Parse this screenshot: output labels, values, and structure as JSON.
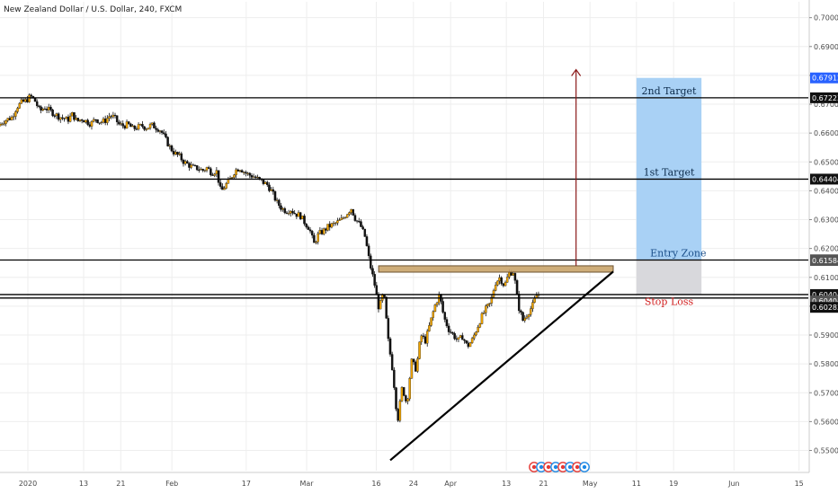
{
  "title": "New Zealand Dollar / U.S. Dollar, 240, FXCM",
  "chart_data": {
    "type": "candlestick",
    "symbol": "NZD/USD",
    "interval": "240",
    "source": "FXCM",
    "ylim": [
      0.543,
      0.7055
    ],
    "y_ticks": [
      "0.70000",
      "0.69000",
      "0.68000",
      "0.67000",
      "0.66000",
      "0.65000",
      "0.64000",
      "0.63000",
      "0.62000",
      "0.61000",
      "0.60000",
      "0.59000",
      "0.58000",
      "0.57000",
      "0.56000",
      "0.55000"
    ],
    "x_ticks": [
      {
        "label": "2020",
        "day": 0
      },
      {
        "label": "13",
        "day": 12
      },
      {
        "label": "21",
        "day": 20
      },
      {
        "label": "Feb",
        "day": 31
      },
      {
        "label": "17",
        "day": 47
      },
      {
        "label": "Mar",
        "day": 60
      },
      {
        "label": "16",
        "day": 75
      },
      {
        "label": "24",
        "day": 83
      },
      {
        "label": "Apr",
        "day": 91
      },
      {
        "label": "13",
        "day": 103
      },
      {
        "label": "21",
        "day": 111
      },
      {
        "label": "May",
        "day": 121
      },
      {
        "label": "11",
        "day": 131
      },
      {
        "label": "19",
        "day": 139
      },
      {
        "label": "Jun",
        "day": 152
      },
      {
        "label": "15",
        "day": 166
      }
    ],
    "xlim_days": [
      -6,
      168
    ],
    "price_path": [
      [
        -6,
        0.6625
      ],
      [
        -5,
        0.664
      ],
      [
        -3,
        0.6655
      ],
      [
        -2,
        0.669
      ],
      [
        -1,
        0.6705
      ],
      [
        0,
        0.6712
      ],
      [
        1,
        0.6728
      ],
      [
        2,
        0.671
      ],
      [
        3,
        0.6675
      ],
      [
        4,
        0.669
      ],
      [
        6,
        0.6668
      ],
      [
        7,
        0.6658
      ],
      [
        9,
        0.6645
      ],
      [
        10,
        0.6665
      ],
      [
        11,
        0.664
      ],
      [
        12,
        0.665
      ],
      [
        14,
        0.6632
      ],
      [
        15,
        0.665
      ],
      [
        16,
        0.6638
      ],
      [
        17,
        0.6642
      ],
      [
        18,
        0.666
      ],
      [
        19,
        0.6655
      ],
      [
        20,
        0.663
      ],
      [
        21,
        0.6625
      ],
      [
        22,
        0.663
      ],
      [
        23,
        0.6615
      ],
      [
        24,
        0.662
      ],
      [
        25,
        0.6625
      ],
      [
        26,
        0.6618
      ],
      [
        27,
        0.6628
      ],
      [
        28,
        0.662
      ],
      [
        29,
        0.661
      ],
      [
        30,
        0.658
      ],
      [
        31,
        0.655
      ],
      [
        32,
        0.653
      ],
      [
        33,
        0.652
      ],
      [
        34,
        0.65
      ],
      [
        35,
        0.649
      ],
      [
        36,
        0.648
      ],
      [
        37,
        0.6478
      ],
      [
        38,
        0.647
      ],
      [
        39,
        0.648
      ],
      [
        40,
        0.6462
      ],
      [
        41,
        0.647
      ],
      [
        42,
        0.6395
      ],
      [
        43,
        0.642
      ],
      [
        44,
        0.644
      ],
      [
        45,
        0.647
      ],
      [
        46,
        0.648
      ],
      [
        47,
        0.6465
      ],
      [
        48,
        0.6455
      ],
      [
        49,
        0.645
      ],
      [
        50,
        0.644
      ],
      [
        51,
        0.643
      ],
      [
        52,
        0.642
      ],
      [
        53,
        0.6395
      ],
      [
        54,
        0.636
      ],
      [
        55,
        0.634
      ],
      [
        56,
        0.633
      ],
      [
        57,
        0.6335
      ],
      [
        58,
        0.632
      ],
      [
        59,
        0.6315
      ],
      [
        60,
        0.629
      ],
      [
        61,
        0.627
      ],
      [
        62,
        0.6215
      ],
      [
        63,
        0.625
      ],
      [
        64,
        0.626
      ],
      [
        65,
        0.6275
      ],
      [
        66,
        0.6282
      ],
      [
        67,
        0.629
      ],
      [
        68,
        0.63
      ],
      [
        69,
        0.632
      ],
      [
        70,
        0.634
      ],
      [
        71,
        0.63
      ],
      [
        72,
        0.628
      ],
      [
        73,
        0.624
      ],
      [
        74,
        0.615
      ],
      [
        75,
        0.608
      ],
      [
        76,
        0.599
      ],
      [
        77,
        0.605
      ],
      [
        78,
        0.588
      ],
      [
        79,
        0.577
      ],
      [
        80,
        0.56
      ],
      [
        81,
        0.572
      ],
      [
        82,
        0.566
      ],
      [
        83,
        0.581
      ],
      [
        84,
        0.578
      ],
      [
        85,
        0.59
      ],
      [
        86,
        0.588
      ],
      [
        87,
        0.594
      ],
      [
        88,
        0.6
      ],
      [
        89,
        0.604
      ],
      [
        90,
        0.596
      ],
      [
        91,
        0.592
      ],
      [
        92,
        0.59
      ],
      [
        93,
        0.588
      ],
      [
        94,
        0.5895
      ],
      [
        95,
        0.586
      ],
      [
        96,
        0.588
      ],
      [
        97,
        0.592
      ],
      [
        98,
        0.596
      ],
      [
        99,
        0.599
      ],
      [
        100,
        0.601
      ],
      [
        101,
        0.608
      ],
      [
        102,
        0.61
      ],
      [
        103,
        0.607
      ],
      [
        104,
        0.6115
      ],
      [
        105,
        0.612
      ],
      [
        106,
        0.6
      ],
      [
        107,
        0.595
      ],
      [
        108,
        0.5975
      ],
      [
        109,
        0.6
      ],
      [
        110,
        0.604
      ]
    ],
    "levels": [
      {
        "name": "line-2nd-target",
        "price": 0.67223
      },
      {
        "name": "line-1st-target",
        "price": 0.64404
      },
      {
        "name": "line-entry",
        "price": 0.61601
      },
      {
        "name": "line-stop-upper",
        "price": 0.60404
      },
      {
        "name": "line-stop-lower",
        "price": 0.60283
      }
    ],
    "price_badges": [
      {
        "label": "0.67912",
        "price": 0.67912,
        "color": "#2962ff"
      },
      {
        "label": "0.67223",
        "price": 0.67223,
        "color": "#111111"
      },
      {
        "label": "0.64404",
        "price": 0.64404,
        "color": "#111111"
      },
      {
        "label": "0.61601",
        "price": 0.61601,
        "color": "#111111"
      },
      {
        "label": "0.61584",
        "price": 0.61584,
        "color": "#555555"
      },
      {
        "label": "0.60404",
        "price": 0.60404,
        "color": "#111111"
      },
      {
        "label": "0.60404",
        "price": 0.6018,
        "color": "#555555"
      },
      {
        "label": "0.60283",
        "price": 0.5996,
        "color": "#111111"
      }
    ],
    "resistance_zone": {
      "day_start": 75.5,
      "day_end": 126,
      "price_top": 0.614,
      "price_bottom": 0.6118,
      "fill": "#c9a46a",
      "stroke": "#6d5230"
    },
    "trendline": {
      "from": [
        78,
        0.5466
      ],
      "to": [
        126,
        0.612
      ],
      "color": "#000000"
    },
    "projection_arrow": {
      "day": 118,
      "from": 0.614,
      "to": 0.682,
      "color": "#8b1a1a"
    },
    "target_box": {
      "day_start": 131,
      "day_end": 145,
      "price_top": 0.67912,
      "price_bottom": 0.61601,
      "fill": "#a9d1f5"
    },
    "entry_box": {
      "day_start": 131,
      "day_end": 145,
      "price_top": 0.61601,
      "price_bottom": 0.60404,
      "fill": "#d8d8dc"
    },
    "annotations": [
      {
        "name": "label-2nd-target",
        "text": "2nd Target",
        "day": 138,
        "price": 0.6735,
        "color": "#0b2a4a"
      },
      {
        "name": "label-1st-target",
        "text": "1st Target",
        "day": 138,
        "price": 0.6452,
        "color": "#0b2a4a"
      },
      {
        "name": "label-entry-zone",
        "text": "Entry Zone",
        "day": 140,
        "price": 0.6172,
        "color": "#1b4f8a"
      },
      {
        "name": "label-stop-loss",
        "text": "Stop Loss",
        "day": 138,
        "price": 0.6005,
        "color": "#d22020"
      }
    ],
    "colors": {
      "up": "#f0a400",
      "down": "#111111",
      "grid": "#eeeeee",
      "axis": "#cccccc"
    }
  }
}
